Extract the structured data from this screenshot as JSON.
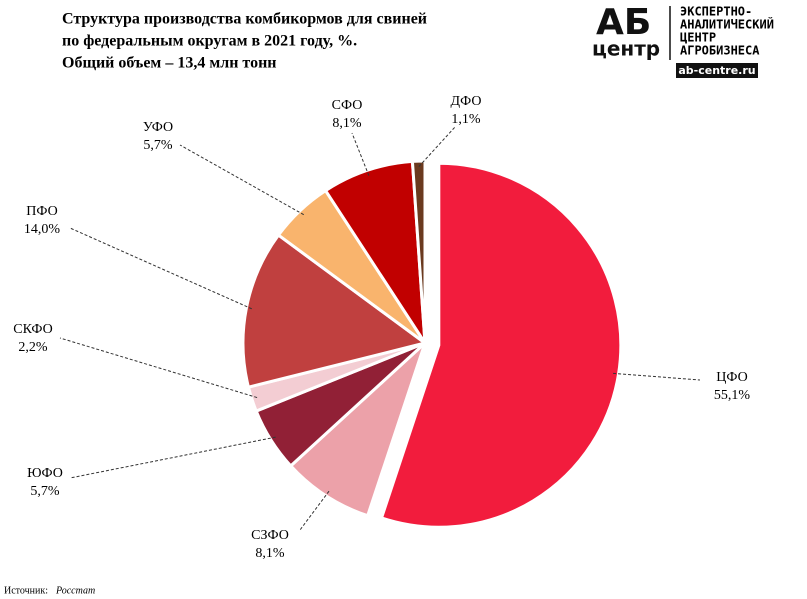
{
  "chart_data": {
    "type": "pie",
    "title": [
      "Структура  производства комбикормов для свиней",
      "по федеральным округам в 2021 году, %."
    ],
    "subtitle": "Общий объем – 13,4 млн тонн",
    "categories": [
      "ЦФО",
      "СЗФО",
      "ЮФО",
      "СКФО",
      "ПФО",
      "УФО",
      "СФО",
      "ДФО"
    ],
    "values": [
      55.1,
      8.1,
      5.7,
      2.2,
      14.0,
      5.7,
      8.1,
      1.1
    ],
    "value_labels": [
      "55,1%",
      "8,1%",
      "5,7%",
      "2,2%",
      "14,0%",
      "5,7%",
      "8,1%",
      "1,1%"
    ],
    "colors": [
      "#f21c3d",
      "#eca1a9",
      "#912036",
      "#f3cdd3",
      "#c0403f",
      "#f9b46d",
      "#c10000",
      "#6b3a1f"
    ],
    "source_label": "Источник:",
    "source": "Росстат"
  },
  "logo": {
    "mark_top": "АБ",
    "mark_bottom": "центр",
    "lines": [
      "ЭКСПЕРТНО-",
      "АНАЛИТИЧЕСКИЙ",
      "ЦЕНТР",
      "АГРОБИЗНЕСА"
    ],
    "url": "ab-centre.ru"
  }
}
